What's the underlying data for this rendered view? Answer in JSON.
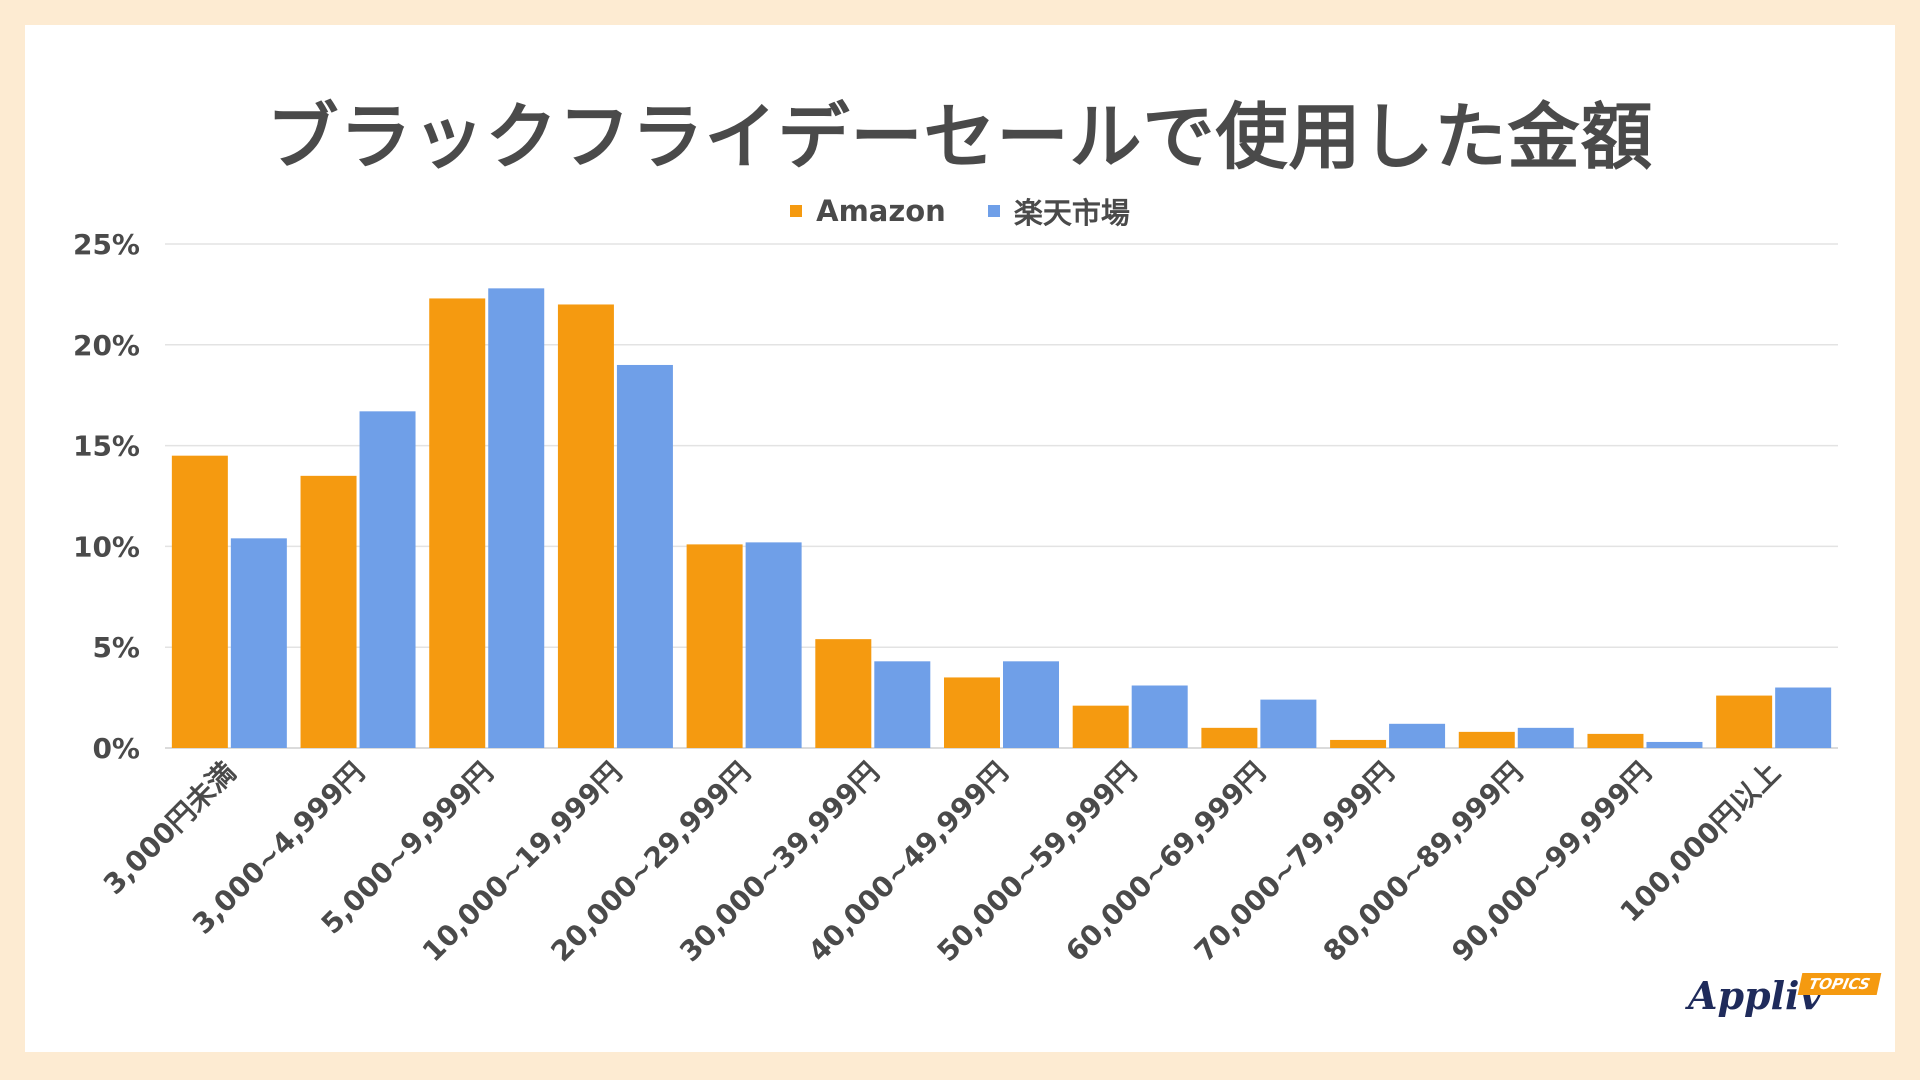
{
  "title": "ブラックフライデーセールで使用した金額",
  "colors": {
    "background": "#fdebd2",
    "amazon": "#f59a10",
    "rakuten": "#6f9fe8",
    "grid": "#e3e3e3",
    "text": "#4a4a4a"
  },
  "chart_data": {
    "type": "bar",
    "title": "ブラックフライデーセールで使用した金額",
    "xlabel": "",
    "ylabel": "",
    "ylim": [
      0,
      25
    ],
    "yticks": [
      "0%",
      "5%",
      "10%",
      "15%",
      "20%",
      "25%"
    ],
    "grid": true,
    "legend_position": "top-center",
    "categories": [
      "3,000円未満",
      "3,000~4,999円",
      "5,000~9,999円",
      "10,000~19,999円",
      "20,000~29,999円",
      "30,000~39,999円",
      "40,000~49,999円",
      "50,000~59,999円",
      "60,000~69,999円",
      "70,000~79,999円",
      "80,000~89,999円",
      "90,000~99,999円",
      "100,000円以上"
    ],
    "series": [
      {
        "name": "Amazon",
        "values": [
          14.5,
          13.5,
          22.3,
          22.0,
          10.1,
          5.4,
          3.5,
          2.1,
          1.0,
          0.4,
          0.8,
          0.7,
          2.6
        ]
      },
      {
        "name": "楽天市場",
        "values": [
          10.4,
          16.7,
          22.8,
          19.0,
          10.2,
          4.3,
          4.3,
          3.1,
          2.4,
          1.2,
          1.0,
          0.3,
          3.0
        ]
      }
    ]
  },
  "logo": {
    "name": "Appliv",
    "badge": "TOPICS"
  }
}
